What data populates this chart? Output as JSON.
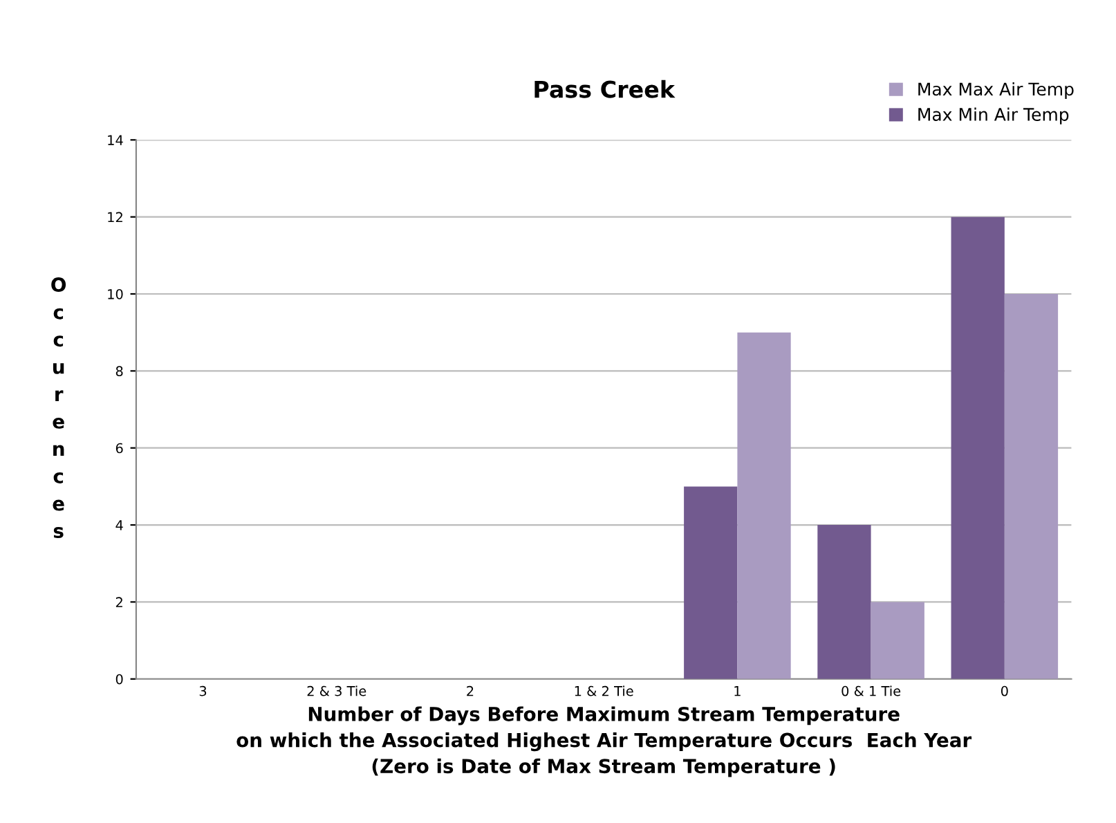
{
  "chart_data": {
    "type": "bar",
    "title": "Pass Creek",
    "xlabel": "Number of Days Before Maximum Stream Temperature\non which the Associated Highest Air Temperature Occurs  Each Year\n(Zero is Date of Max Stream Temperature )",
    "ylabel": "Occurences",
    "categories": [
      "3",
      "2 & 3 Tie",
      "2",
      "1 & 2 Tie",
      "1",
      "0 & 1 Tie",
      "0"
    ],
    "series": [
      {
        "name": "Max Min Air Temp",
        "color": "#725a8f",
        "values": [
          0,
          0,
          0,
          0,
          5,
          4,
          12
        ]
      },
      {
        "name": "Max Max Air Temp",
        "color": "#a99bc1",
        "values": [
          0,
          0,
          0,
          0,
          9,
          2,
          10
        ]
      }
    ],
    "ylim": [
      0,
      14
    ],
    "yticks": [
      0,
      2,
      4,
      6,
      8,
      10,
      12,
      14
    ],
    "grid": "y",
    "legend": "top right"
  }
}
